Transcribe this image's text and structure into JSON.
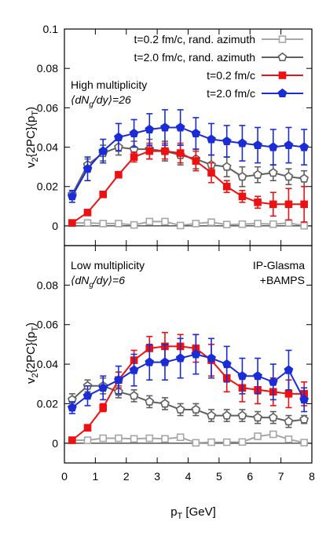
{
  "figure": {
    "x_axis_label": "p",
    "x_axis_label_sub": "T",
    "x_axis_unit": " [GeV]",
    "x_ticks": [
      "0",
      "1",
      "2",
      "3",
      "4",
      "5",
      "6",
      "7",
      "8"
    ]
  },
  "chart_data": [
    {
      "type": "line",
      "panel": "top",
      "ylabel_main": "v",
      "ylabel_sub1": "2",
      "ylabel_mid": "{2PC}(p",
      "ylabel_sub2": "T",
      "ylabel_end": ")",
      "xlim": [
        0,
        8
      ],
      "ylim": [
        -0.01,
        0.1
      ],
      "yticks": [
        0,
        0.02,
        0.04,
        0.06,
        0.08,
        0.1
      ],
      "ytick_labels": [
        "0",
        "0.02",
        "0.04",
        "0.06",
        "0.08",
        "0.1"
      ],
      "legend_position": "top-right",
      "annotation_lines": [
        "High multiplicity",
        "⟨dN",
        "g",
        "/dy⟩=26"
      ],
      "x": [
        0.25,
        0.75,
        1.25,
        1.75,
        2.25,
        2.75,
        3.25,
        3.75,
        4.25,
        4.75,
        5.25,
        5.75,
        6.25,
        6.75,
        7.25,
        7.75
      ],
      "series": [
        {
          "name": "t=0.2 fm/c, rand. azimuth",
          "color": "#a6a6a6",
          "marker": "open-square",
          "values": [
            0.0015,
            0.0015,
            0.0012,
            0.0012,
            0.0005,
            0.0022,
            0.0022,
            0.0002,
            0.0012,
            0.0019,
            0.0007,
            0.0009,
            0.0012,
            0.0009,
            0.0015,
            0.0001
          ],
          "errors": [
            0.0005,
            0.0005,
            0.0005,
            0.0005,
            0.0005,
            0.0012,
            0.0012,
            0.0007,
            0.0007,
            0.0007,
            0.0006,
            0.0006,
            0.0006,
            0.0006,
            0.0006,
            0.0006
          ]
        },
        {
          "name": "t=2.0 fm/c, rand. azimuth",
          "color": "#5f5f5f",
          "marker": "open-pentagon",
          "values": [
            0.016,
            0.031,
            0.037,
            0.04,
            0.039,
            0.039,
            0.038,
            0.036,
            0.034,
            0.031,
            0.03,
            0.025,
            0.026,
            0.027,
            0.025,
            0.024
          ],
          "errors": [
            0.002,
            0.003,
            0.004,
            0.004,
            0.004,
            0.005,
            0.005,
            0.005,
            0.005,
            0.005,
            0.005,
            0.005,
            0.004,
            0.004,
            0.004,
            0.004
          ]
        },
        {
          "name": "t=0.2 fm/c",
          "color": "#ee1111",
          "marker": "filled-square",
          "values": [
            0.0015,
            0.0068,
            0.016,
            0.026,
            0.035,
            0.038,
            0.038,
            0.037,
            0.033,
            0.027,
            0.02,
            0.015,
            0.012,
            0.011,
            0.011,
            0.011
          ],
          "errors": [
            0.0005,
            0.0008,
            0.001,
            0.0015,
            0.0025,
            0.004,
            0.004,
            0.005,
            0.005,
            0.005,
            0.003,
            0.003,
            0.003,
            0.006,
            0.008,
            0.009
          ]
        },
        {
          "name": "t=2.0 fm/c",
          "color": "#1a2cd6",
          "marker": "filled-pentagon",
          "values": [
            0.015,
            0.029,
            0.038,
            0.045,
            0.047,
            0.049,
            0.05,
            0.05,
            0.047,
            0.044,
            0.043,
            0.042,
            0.041,
            0.04,
            0.041,
            0.04
          ],
          "errors": [
            0.003,
            0.006,
            0.006,
            0.007,
            0.007,
            0.008,
            0.009,
            0.009,
            0.008,
            0.008,
            0.008,
            0.009,
            0.009,
            0.009,
            0.009,
            0.009
          ]
        }
      ]
    },
    {
      "type": "line",
      "panel": "bottom",
      "ylabel_main": "v",
      "ylabel_sub1": "2",
      "ylabel_mid": "{2PC}(p",
      "ylabel_sub2": "T",
      "ylabel_end": ")",
      "xlim": [
        0,
        8
      ],
      "ylim": [
        -0.01,
        0.1
      ],
      "yticks": [
        0,
        0.02,
        0.04,
        0.06,
        0.08
      ],
      "ytick_labels": [
        "0",
        "0.02",
        "0.04",
        "0.06",
        "0.08"
      ],
      "annotation_lines": [
        "Low multiplicity",
        "⟨dN",
        "g",
        "/dy⟩=6"
      ],
      "label_right": [
        "IP-Glasma",
        "+BAMPS"
      ],
      "x": [
        0.25,
        0.75,
        1.25,
        1.75,
        2.25,
        2.75,
        3.25,
        3.75,
        4.25,
        4.75,
        5.25,
        5.75,
        6.25,
        6.75,
        7.25,
        7.75
      ],
      "series": [
        {
          "name": "t=0.2 fm/c, rand. azimuth",
          "color": "#a6a6a6",
          "marker": "open-square",
          "values": [
            0.0015,
            0.0015,
            0.0025,
            0.0025,
            0.0022,
            0.0025,
            0.0022,
            0.003,
            0.0002,
            0.0005,
            0.0005,
            0.0006,
            0.0035,
            0.0045,
            0.002,
            0.0003
          ],
          "errors": [
            0.0008,
            0.0008,
            0.001,
            0.001,
            0.001,
            0.001,
            0.001,
            0.0012,
            0.0008,
            0.0008,
            0.0008,
            0.0008,
            0.0015,
            0.0015,
            0.0012,
            0.0008
          ]
        },
        {
          "name": "t=2.0 fm/c, rand. azimuth",
          "color": "#5f5f5f",
          "marker": "open-pentagon",
          "values": [
            0.022,
            0.029,
            0.029,
            0.026,
            0.024,
            0.021,
            0.02,
            0.017,
            0.017,
            0.014,
            0.014,
            0.014,
            0.013,
            0.013,
            0.011,
            0.012
          ],
          "errors": [
            0.003,
            0.003,
            0.004,
            0.003,
            0.003,
            0.003,
            0.003,
            0.003,
            0.003,
            0.003,
            0.003,
            0.003,
            0.003,
            0.003,
            0.003,
            0.002
          ]
        },
        {
          "name": "t=0.2 fm/c",
          "color": "#ee1111",
          "marker": "filled-square",
          "values": [
            0.0015,
            0.0078,
            0.018,
            0.032,
            0.042,
            0.048,
            0.049,
            0.049,
            0.048,
            0.042,
            0.033,
            0.028,
            0.027,
            0.026,
            0.025,
            0.025
          ],
          "errors": [
            0.0008,
            0.001,
            0.002,
            0.004,
            0.005,
            0.006,
            0.007,
            0.006,
            0.007,
            0.008,
            0.007,
            0.007,
            0.007,
            0.007,
            0.007,
            0.006
          ]
        },
        {
          "name": "t=2.0 fm/c",
          "color": "#1a2cd6",
          "marker": "filled-pentagon",
          "values": [
            0.018,
            0.024,
            0.028,
            0.032,
            0.037,
            0.041,
            0.041,
            0.043,
            0.045,
            0.043,
            0.04,
            0.034,
            0.034,
            0.031,
            0.037,
            0.022
          ],
          "errors": [
            0.003,
            0.005,
            0.006,
            0.007,
            0.008,
            0.009,
            0.009,
            0.01,
            0.01,
            0.01,
            0.009,
            0.009,
            0.009,
            0.009,
            0.01,
            0.006
          ]
        }
      ]
    }
  ]
}
